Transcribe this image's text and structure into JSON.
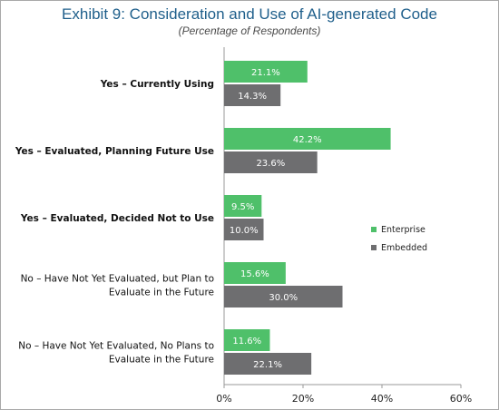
{
  "header": {
    "title": "Exhibit 9: Consideration and Use of AI-generated Code",
    "subtitle": "(Percentage of Respondents)"
  },
  "colors": {
    "enterprise": "#4fc06a",
    "embedded": "#6e6e70",
    "axis": "#9a9a9a"
  },
  "chart_data": {
    "type": "bar",
    "orientation": "horizontal",
    "title": "Exhibit 9: Consideration and Use of AI-generated Code",
    "subtitle": "(Percentage of Respondents)",
    "categories": [
      [
        "Yes – Currently Using"
      ],
      [
        "Yes – Evaluated, Planning Future Use"
      ],
      [
        "Yes – Evaluated, Decided Not to Use"
      ],
      [
        "No – Have Not Yet Evaluated, but Plan to",
        "Evaluate in the Future"
      ],
      [
        "No – Have Not Yet Evaluated, No Plans to",
        "Evaluate in the Future"
      ]
    ],
    "bold_categories": [
      true,
      true,
      true,
      false,
      false
    ],
    "series": [
      {
        "name": "Enterprise",
        "values": [
          21.1,
          42.2,
          9.5,
          15.6,
          11.6
        ],
        "labels": [
          "21.1%",
          "42.2%",
          "9.5%",
          "15.6%",
          "11.6%"
        ]
      },
      {
        "name": "Embedded",
        "values": [
          14.3,
          23.6,
          10.0,
          30.0,
          22.1
        ],
        "labels": [
          "14.3%",
          "23.6%",
          "10.0%",
          "30.0%",
          "22.1%"
        ]
      }
    ],
    "xlim": [
      0,
      60
    ],
    "xticks": [
      "0%",
      "20%",
      "40%",
      "60%"
    ],
    "legend_position": "right"
  }
}
